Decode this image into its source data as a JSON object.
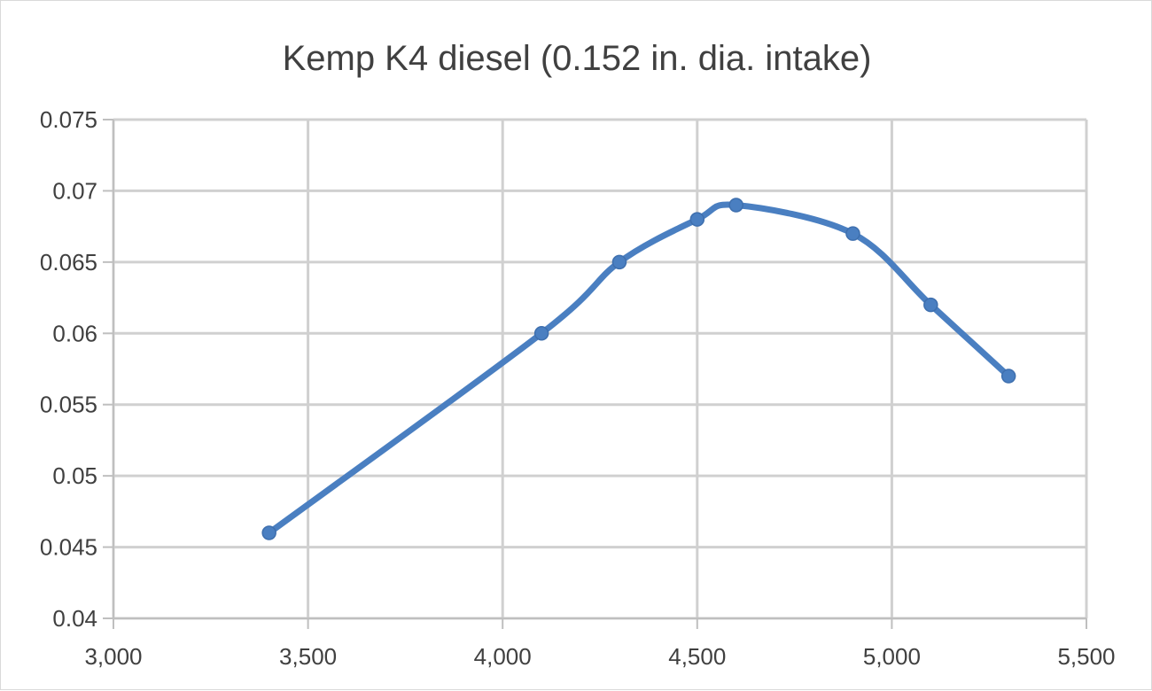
{
  "chart_data": {
    "type": "line",
    "title": "Kemp K4 diesel (0.152 in. dia. intake)",
    "xlabel": "",
    "ylabel": "",
    "xlim": [
      3000,
      5500
    ],
    "ylim": [
      0.04,
      0.075
    ],
    "x_ticks": [
      3000,
      3500,
      4000,
      4500,
      5000,
      5500
    ],
    "x_tick_labels": [
      "3,000",
      "3,500",
      "4,000",
      "4,500",
      "5,000",
      "5,500"
    ],
    "y_ticks": [
      0.04,
      0.045,
      0.05,
      0.055,
      0.06,
      0.065,
      0.07,
      0.075
    ],
    "y_tick_labels": [
      "0.04",
      "0.045",
      "0.05",
      "0.055",
      "0.06",
      "0.065",
      "0.07",
      "0.075"
    ],
    "grid": true,
    "legend": "none",
    "series": [
      {
        "color": "#4a7fc1",
        "smooth": true,
        "x": [
          3400,
          4100,
          4300,
          4500,
          4600,
          4900,
          5100,
          5300
        ],
        "y": [
          0.046,
          0.06,
          0.065,
          0.068,
          0.069,
          0.067,
          0.062,
          0.057
        ]
      }
    ]
  }
}
